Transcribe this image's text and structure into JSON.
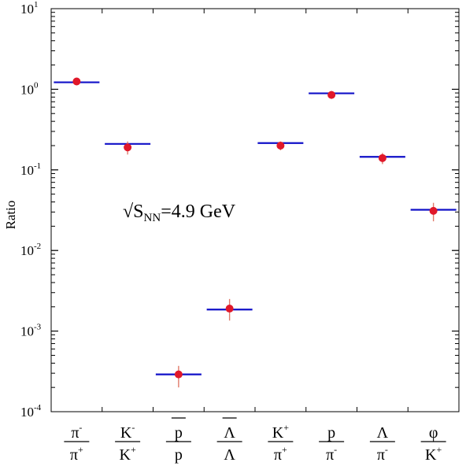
{
  "chart_data": {
    "type": "scatter",
    "ylabel": "Ratio",
    "yscale": "log",
    "ylim": [
      0.0001,
      10
    ],
    "annotation": {
      "prefix": "√",
      "main": "S",
      "sub": "NN",
      "suffix": "=4.9 GeV"
    },
    "y_ticks": [
      {
        "base": "10",
        "exp": "-4",
        "value": 0.0001
      },
      {
        "base": "10",
        "exp": "-3",
        "value": 0.001
      },
      {
        "base": "10",
        "exp": "-2",
        "value": 0.01
      },
      {
        "base": "10",
        "exp": "-1",
        "value": 0.1
      },
      {
        "base": "10",
        "exp": "0",
        "value": 1
      },
      {
        "base": "10",
        "exp": "1",
        "value": 10
      }
    ],
    "categories": [
      {
        "num": "π",
        "num_sup": "-",
        "den": "π",
        "den_sup": "+",
        "bar_num": false
      },
      {
        "num": "K",
        "num_sup": "-",
        "den": "K",
        "den_sup": "+",
        "bar_num": false
      },
      {
        "num": "p",
        "num_sup": "",
        "den": "p",
        "den_sup": "",
        "bar_num": true
      },
      {
        "num": "Λ",
        "num_sup": "",
        "den": "Λ",
        "den_sup": "",
        "bar_num": true
      },
      {
        "num": "K",
        "num_sup": "+",
        "den": "π",
        "den_sup": "+",
        "bar_num": false
      },
      {
        "num": "p",
        "num_sup": "",
        "den": "π",
        "den_sup": "-",
        "bar_num": false
      },
      {
        "num": "Λ",
        "num_sup": "",
        "den": "π",
        "den_sup": "-",
        "bar_num": false
      },
      {
        "num": "φ",
        "num_sup": "",
        "den": "K",
        "den_sup": "+",
        "bar_num": false
      }
    ],
    "series": [
      {
        "marker": "line",
        "color": "#1010c8",
        "values": [
          1.22,
          0.21,
          0.00029,
          0.00185,
          0.215,
          0.89,
          0.145,
          0.032
        ]
      },
      {
        "marker": "point",
        "color": "#e0182a",
        "errorbar_color": "#e07a6a",
        "values": [
          1.25,
          0.19,
          0.00029,
          0.0019,
          0.2,
          0.85,
          0.14,
          0.031
        ],
        "err_low": [
          1.15,
          0.155,
          0.0002,
          0.00135,
          0.175,
          0.76,
          0.118,
          0.023
        ],
        "err_high": [
          1.32,
          0.225,
          0.00037,
          0.0025,
          0.225,
          0.95,
          0.162,
          0.039
        ]
      }
    ]
  }
}
